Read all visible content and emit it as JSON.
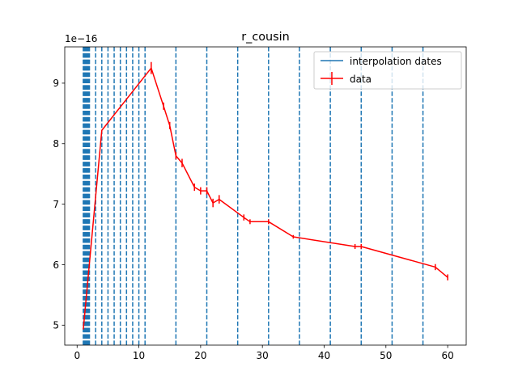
{
  "chart_data": {
    "type": "line",
    "title": "r_cousin",
    "xlabel": "",
    "ylabel": "",
    "y_offset_text": "1e−16",
    "xlim": [
      -2,
      63
    ],
    "ylim": [
      4.67,
      9.6
    ],
    "x_ticks": [
      0,
      10,
      20,
      30,
      40,
      50,
      60
    ],
    "y_ticks": [
      5,
      6,
      7,
      8,
      9
    ],
    "grid": false,
    "legend_position": "top-right",
    "interpolation_dates": {
      "name": "interpolation dates",
      "color": "#1f77b4",
      "style": "dashed",
      "x": [
        1.0,
        1.1,
        1.2,
        1.3,
        1.4,
        1.5,
        1.6,
        1.7,
        1.8,
        1.9,
        2.0,
        3.0,
        4.0,
        5.0,
        6.0,
        7.0,
        8.0,
        9.0,
        10.0,
        11.0,
        16.0,
        21.0,
        26.0,
        31.0,
        36.0,
        41.0,
        46.0,
        51.0,
        56.0
      ]
    },
    "series": [
      {
        "name": "data",
        "color": "#ff0000",
        "x": [
          1,
          4,
          12,
          14,
          15,
          16,
          17,
          19,
          20,
          21,
          22,
          23,
          27,
          28,
          31,
          35,
          45,
          46,
          58,
          60
        ],
        "y": [
          4.93,
          8.22,
          9.25,
          8.62,
          8.3,
          7.8,
          7.68,
          7.28,
          7.22,
          7.22,
          7.02,
          7.08,
          6.78,
          6.71,
          6.71,
          6.46,
          6.3,
          6.3,
          5.96,
          5.79
        ],
        "err": [
          0.0,
          0.0,
          0.1,
          0.06,
          0.06,
          0.06,
          0.07,
          0.06,
          0.06,
          0.06,
          0.07,
          0.07,
          0.05,
          0.04,
          0.04,
          0.03,
          0.04,
          0.04,
          0.05,
          0.05
        ]
      }
    ]
  }
}
